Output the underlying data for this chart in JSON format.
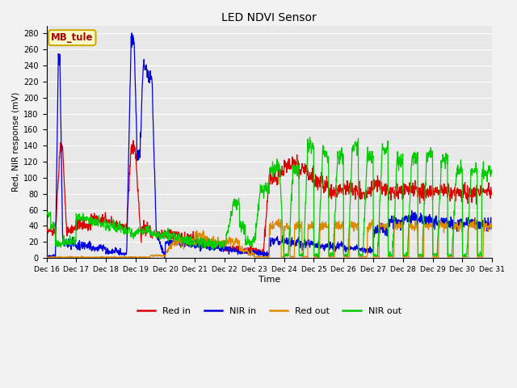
{
  "title": "LED NDVI Sensor",
  "ylabel": "Red, NIR response (mV)",
  "xlabel": "Time",
  "annotation": "MB_tule",
  "ylim": [
    0,
    290
  ],
  "yticks": [
    0,
    20,
    40,
    60,
    80,
    100,
    120,
    140,
    160,
    180,
    200,
    220,
    240,
    260,
    280
  ],
  "colors": {
    "red_in": "#dd0000",
    "nir_in": "#0000dd",
    "red_out": "#dd8800",
    "nir_out": "#00cc00"
  },
  "legend": [
    {
      "label": "Red in",
      "color": "#dd0000"
    },
    {
      "label": "NIR in",
      "color": "#0000dd"
    },
    {
      "label": "Red out",
      "color": "#dd8800"
    },
    {
      "label": "NIR out",
      "color": "#00cc00"
    }
  ],
  "background_color": "#e8e8e8",
  "grid_color": "#ffffff",
  "xtick_labels": [
    "Dec 16",
    "Dec 17",
    "Dec 18",
    "Dec 19",
    "Dec 20",
    "Dec 21",
    "Dec 22",
    "Dec 23",
    "Dec 24",
    "Dec 25",
    "Dec 26",
    "Dec 27",
    "Dec 28",
    "Dec 29",
    "Dec 30",
    "Dec 31"
  ]
}
